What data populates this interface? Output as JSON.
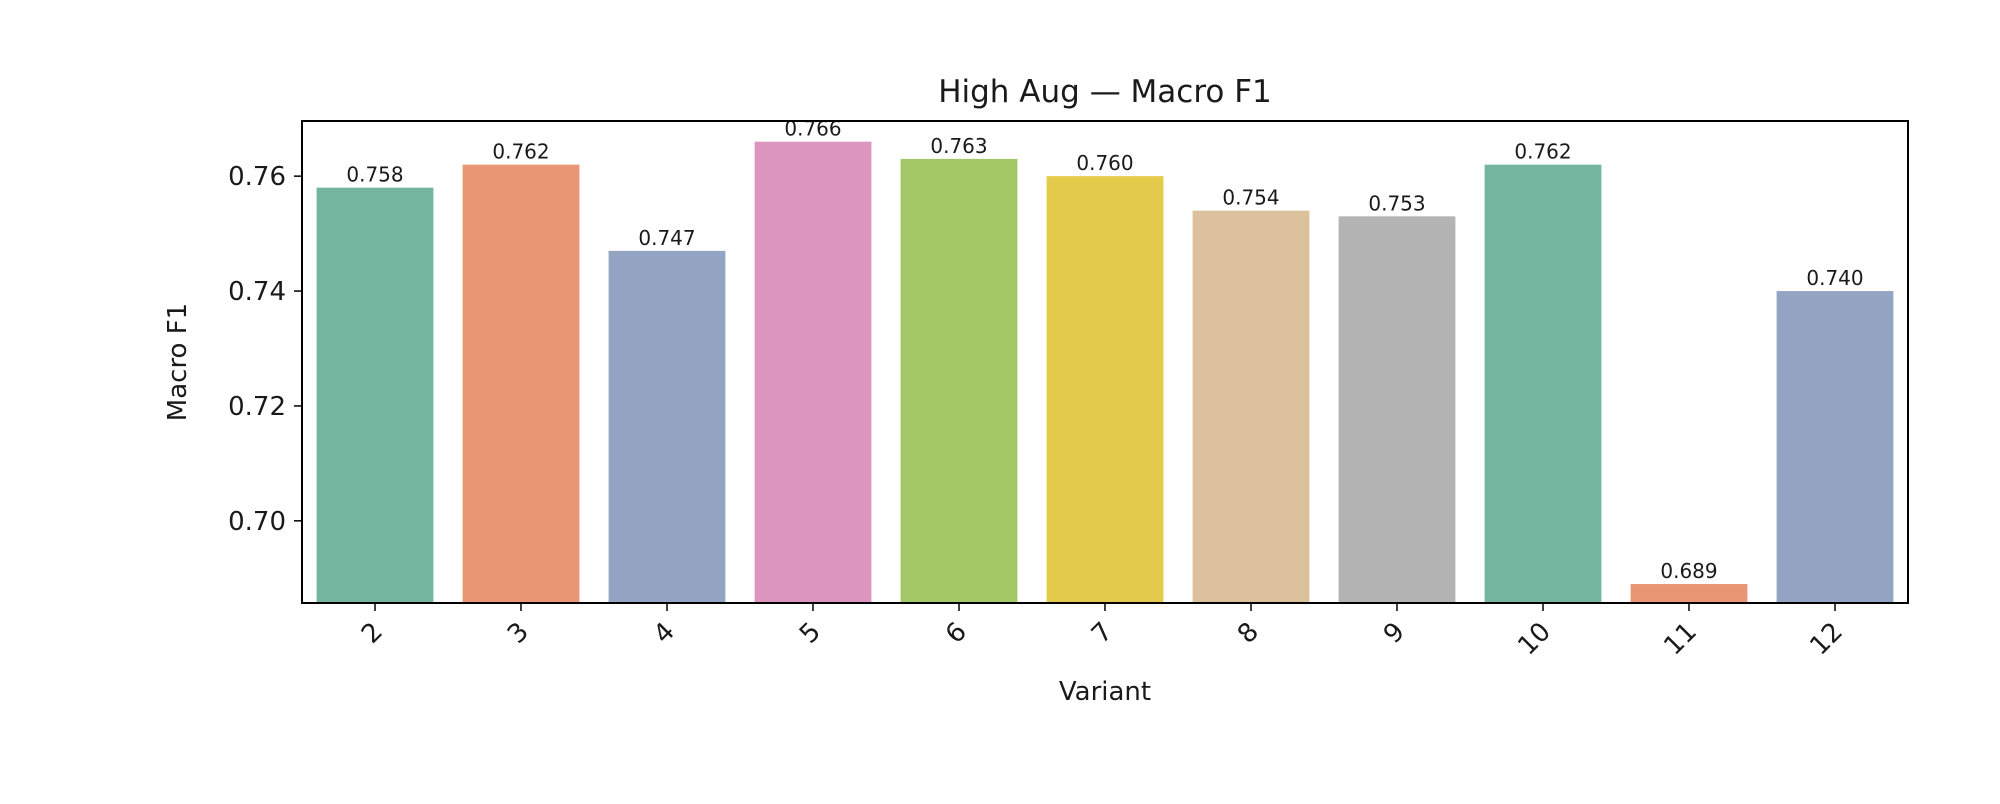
{
  "chart_data": {
    "type": "bar",
    "title": "High Aug — Macro F1",
    "xlabel": "Variant",
    "ylabel": "Macro F1",
    "categories": [
      "2",
      "3",
      "4",
      "5",
      "6",
      "7",
      "8",
      "9",
      "10",
      "11",
      "12"
    ],
    "values": [
      0.758,
      0.762,
      0.747,
      0.766,
      0.763,
      0.76,
      0.754,
      0.753,
      0.762,
      0.689,
      0.74
    ],
    "value_labels": [
      "0.758",
      "0.762",
      "0.747",
      "0.766",
      "0.763",
      "0.760",
      "0.754",
      "0.753",
      "0.762",
      "0.689",
      "0.740"
    ],
    "colors": [
      "#73b59f",
      "#e89674",
      "#94a4c3",
      "#db95bf",
      "#a2c765",
      "#e4cb4b",
      "#dbc29c",
      "#b3b3b3",
      "#73b59f",
      "#e89674",
      "#94a4c3"
    ],
    "ylim": [
      0.6857,
      0.7696
    ],
    "yticks": [
      0.7,
      0.72,
      0.74,
      0.76
    ],
    "ytick_labels": [
      "0.70",
      "0.72",
      "0.74",
      "0.76"
    ],
    "x_tick_rotation": 45,
    "grid": false,
    "legend": "none"
  }
}
